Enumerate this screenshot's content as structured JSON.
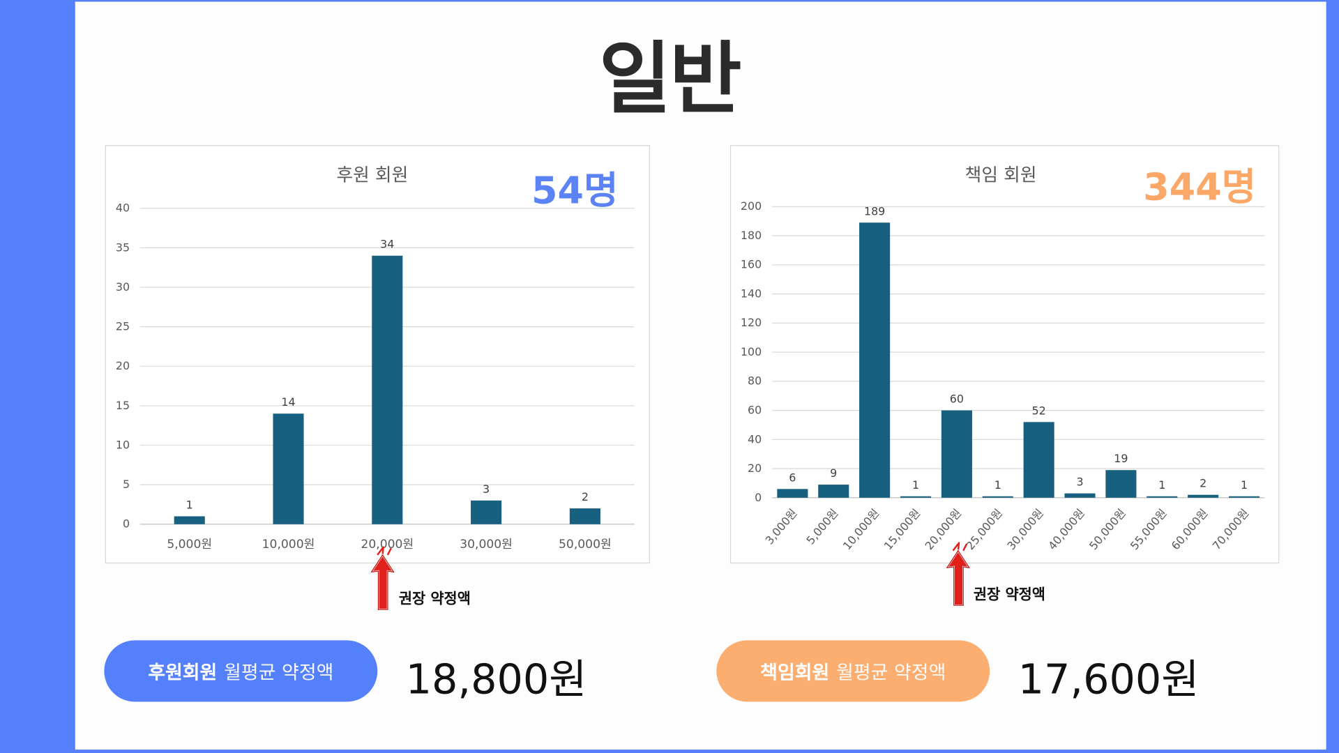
{
  "page_title": "일반",
  "colors": {
    "bar": "#17607f",
    "blue": "#5580fb",
    "orange": "#fcae70",
    "count_blue": "#5b83f5",
    "count_orange": "#fba767",
    "arrow": "#e0201b"
  },
  "chart_data": [
    {
      "type": "bar",
      "title": "후원 회원",
      "count_label": "54명",
      "categories": [
        "5,000원",
        "10,000원",
        "20,000원",
        "30,000원",
        "50,000원"
      ],
      "values": [
        1,
        14,
        34,
        3,
        2
      ],
      "ylim": [
        0,
        40
      ],
      "yticks": [
        0,
        5,
        10,
        15,
        20,
        25,
        30,
        35,
        40
      ],
      "grid": true,
      "xlabel": "",
      "ylabel": ""
    },
    {
      "type": "bar",
      "title": "책임 회원",
      "count_label": "344명",
      "categories": [
        "3,000원",
        "5,000원",
        "10,000원",
        "15,000원",
        "20,000원",
        "25,000원",
        "30,000원",
        "40,000원",
        "50,000원",
        "55,000원",
        "60,000원",
        "70,000원"
      ],
      "values": [
        6,
        9,
        189,
        1,
        60,
        1,
        52,
        3,
        19,
        1,
        2,
        1
      ],
      "ylim": [
        0,
        200
      ],
      "yticks": [
        0,
        20,
        40,
        60,
        80,
        100,
        120,
        140,
        160,
        180,
        200
      ],
      "grid": true,
      "xlabel": "",
      "ylabel": ""
    }
  ],
  "annotations": {
    "recommended_label": "권장 약정액"
  },
  "summary": {
    "support": {
      "strong": "후원회원",
      "rest": "월평균 약정액",
      "amount": "18,800원"
    },
    "responsible": {
      "strong": "책임회원",
      "rest": "월평균 약정액",
      "amount": "17,600원"
    }
  }
}
